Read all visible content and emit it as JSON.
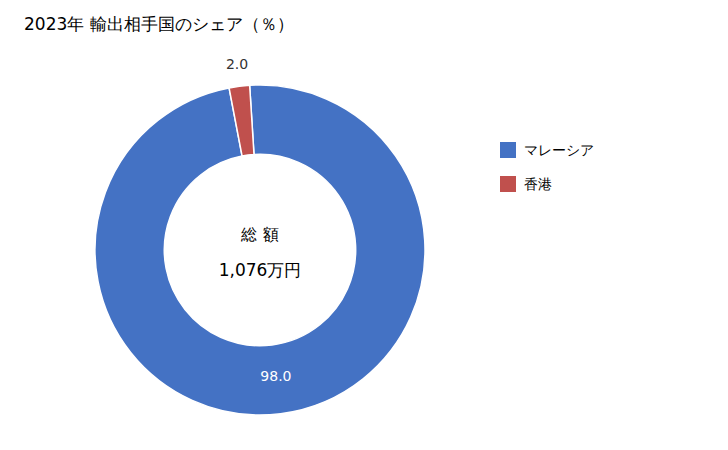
{
  "chart_data": {
    "type": "pie",
    "title": "2023年 輸出相手国のシェア（％）",
    "categories": [
      "マレーシア",
      "香港"
    ],
    "values": [
      98.0,
      2.0
    ],
    "value_labels": [
      "98.0",
      "2.0"
    ],
    "colors": [
      "#4472C4",
      "#C0504D"
    ],
    "data_labels": true,
    "annotations": [
      "総 額",
      "1,076万円"
    ],
    "legend": "right"
  }
}
